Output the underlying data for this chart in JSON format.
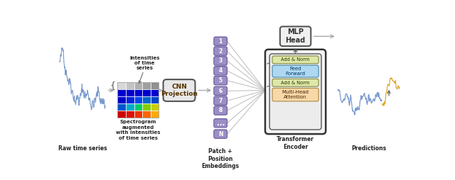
{
  "bg_color": "#ffffff",
  "raw_ts_label": "Raw time series",
  "spectrogram_label": "Spectrogram\naugmented\nwith intensities\nof time series",
  "intensities_label": "Intensities\nof time\nseries",
  "cnn_label": "CNN\nProjection",
  "patch_label": "Patch +\nPosition\nEmbeddings",
  "transformer_label": "Transformer\nEncoder",
  "mlp_label": "MLP\nHead",
  "add_norm1_label": "Add & Norm",
  "feed_forward_label": "Feed\nForward",
  "add_norm2_label": "Add & Norm",
  "multi_head_label": "Multi-Head\nAttention",
  "predictions_label": "Predictions",
  "patch_numbers": [
    "1",
    "2",
    "3",
    "4",
    "5",
    "6",
    "7",
    "8",
    "...",
    "N"
  ],
  "patch_color": "#9b8ec4",
  "add_norm_color": "#dde8a8",
  "feed_forward_color": "#aed8f0",
  "multi_head_color": "#f8d8a8",
  "cnn_box_color": "#e8e8e8",
  "mlp_box_color": "#f0f0f0",
  "arrow_color": "#aaaaaa",
  "label_color": "#222222",
  "blue_ts_color": "#7799cc",
  "orange_ts_color": "#ddaa30"
}
